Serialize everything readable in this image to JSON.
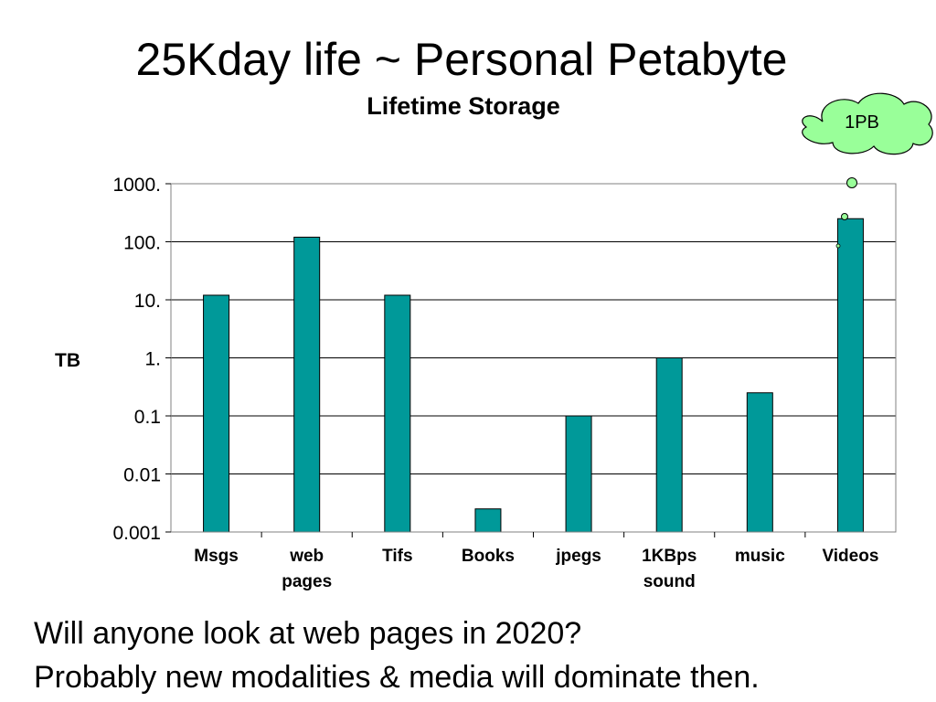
{
  "slide": {
    "title": "25Kday life ~ Personal Petabyte",
    "closing_lines": [
      "Will anyone look at web pages in 2020?",
      "Probably new modalities & media will dominate then."
    ]
  },
  "callout": {
    "text": "1PB",
    "fill": "#99ff99"
  },
  "chart_data": {
    "type": "bar",
    "title": "Lifetime Storage",
    "ylabel": "TB",
    "yscale": "log",
    "ylim": [
      0.001,
      1000
    ],
    "y_ticks": [
      {
        "value": 0.001,
        "label": "0.001"
      },
      {
        "value": 0.01,
        "label": "0.01"
      },
      {
        "value": 0.1,
        "label": "0.1"
      },
      {
        "value": 1,
        "label": "1."
      },
      {
        "value": 10,
        "label": "10."
      },
      {
        "value": 100,
        "label": "100."
      },
      {
        "value": 1000,
        "label": "1000."
      }
    ],
    "categories": [
      {
        "label": "Msgs",
        "lines": [
          "Msgs"
        ]
      },
      {
        "label": "web pages",
        "lines": [
          "web",
          "pages"
        ]
      },
      {
        "label": "Tifs",
        "lines": [
          "Tifs"
        ]
      },
      {
        "label": "Books",
        "lines": [
          "Books"
        ]
      },
      {
        "label": "jpegs",
        "lines": [
          "jpegs"
        ]
      },
      {
        "label": "1KBps sound",
        "lines": [
          "1KBps",
          "sound"
        ]
      },
      {
        "label": "music",
        "lines": [
          "music"
        ]
      },
      {
        "label": "Videos",
        "lines": [
          "Videos"
        ]
      }
    ],
    "values": [
      12,
      120,
      12,
      0.0025,
      0.1,
      1,
      0.25,
      250
    ],
    "bar_color": "#009999",
    "grid": true,
    "legend": "none"
  }
}
